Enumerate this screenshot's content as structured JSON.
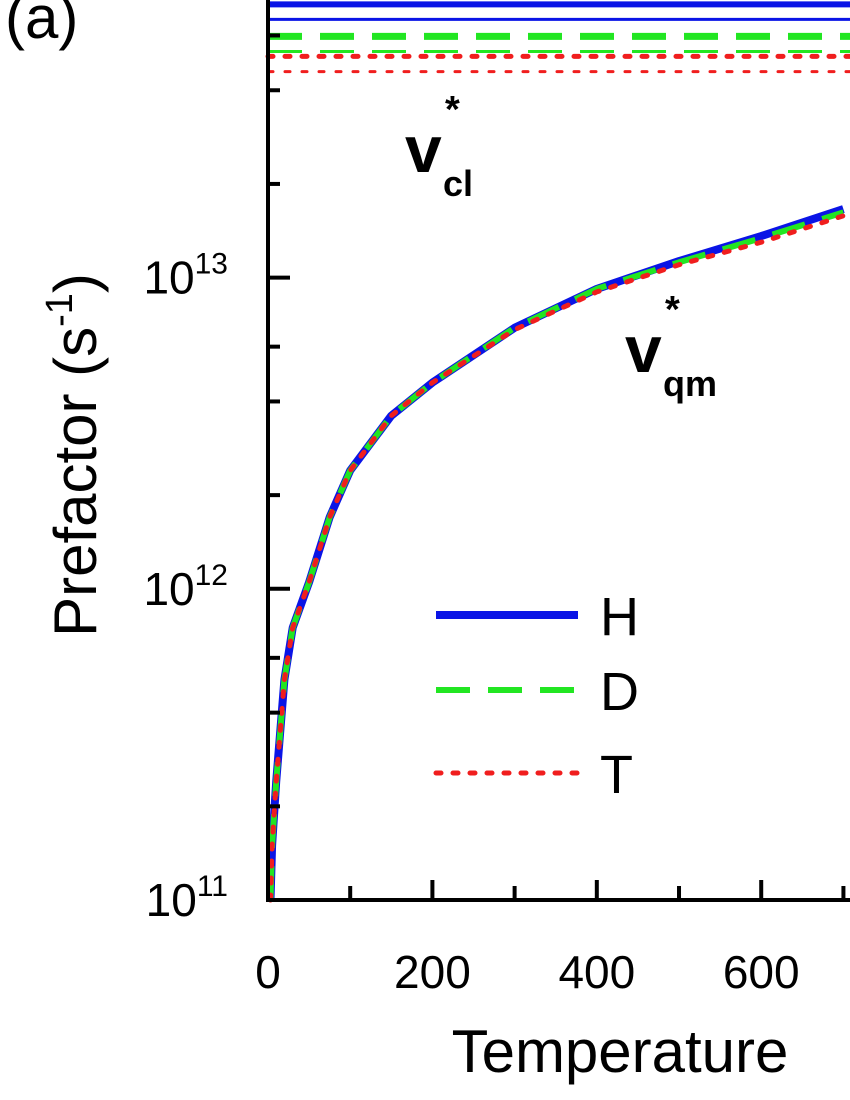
{
  "chart_data": {
    "type": "line",
    "panel_label": "(a)",
    "x_label": "Temperature",
    "y_label": {
      "text": "Prefactor (s",
      "sup": "-1",
      "end": ")"
    },
    "log_y": true,
    "xlim": [
      0,
      708
    ],
    "xticks": [
      0,
      200,
      400,
      600
    ],
    "xminor": [
      100,
      300,
      500,
      700
    ],
    "ylim": [
      100000000000.0,
      78000000000000.0
    ],
    "yticks": [
      {
        "value": 100000000000.0,
        "label": "10",
        "exponent": "11"
      },
      {
        "value": 1000000000000.0,
        "label": "10",
        "exponent": "12"
      },
      {
        "value": 10000000000000.0,
        "label": "10",
        "exponent": "13"
      }
    ],
    "yminor": [
      200000000000.0,
      400000000000.0,
      600000000000.0,
      2000000000000.0,
      4000000000000.0,
      6000000000000.0,
      20000000000000.0,
      40000000000000.0,
      60000000000000.0
    ],
    "x": [
      3,
      5,
      10,
      20,
      30,
      50,
      75,
      100,
      150,
      200,
      300,
      400,
      500,
      600,
      700
    ],
    "series": [
      {
        "name": "H",
        "color": "#0a14e6",
        "dash": "solid",
        "values": [
          100000000000.0,
          150000000000.0,
          240000000000.0,
          510000000000.0,
          750000000000.0,
          1050000000000.0,
          1700000000000.0,
          2400000000000.0,
          3600000000000.0,
          4600000000000.0,
          6900000000000.0,
          9200000000000.0,
          11300000000000.0,
          13600000000000.0,
          16600000000000.0
        ]
      },
      {
        "name": "D",
        "color": "#22e622",
        "dash": "dashed",
        "values": [
          100000000000.0,
          150000000000.0,
          240000000000.0,
          510000000000.0,
          750000000000.0,
          1050000000000.0,
          1700000000000.0,
          2400000000000.0,
          3600000000000.0,
          4600000000000.0,
          6900000000000.0,
          9200000000000.0,
          11200000000000.0,
          13400000000000.0,
          16200000000000.0
        ]
      },
      {
        "name": "T",
        "color": "#f01e1e",
        "dash": "dotted",
        "values": [
          100000000000.0,
          150000000000.0,
          240000000000.0,
          510000000000.0,
          750000000000.0,
          1050000000000.0,
          1700000000000.0,
          2400000000000.0,
          3600000000000.0,
          4600000000000.0,
          6800000000000.0,
          9000000000000.0,
          11000000000000.0,
          13000000000000.0,
          15800000000000.0
        ]
      }
    ],
    "reference_lines": [
      {
        "color": "#0a14e6",
        "dash": "solid",
        "width": 6,
        "value": 75500000000000.0
      },
      {
        "color": "#0a14e6",
        "dash": "solid",
        "width": 3,
        "value": 67600000000000.0
      },
      {
        "color": "#22e622",
        "dash": "dashed",
        "width": 7,
        "value": 59600000000000.0
      },
      {
        "color": "#22e622",
        "dash": "dashed",
        "width": 3,
        "value": 53300000000000.0
      },
      {
        "color": "#f01e1e",
        "dash": "dotted",
        "width": 5,
        "value": 51400000000000.0
      },
      {
        "color": "#f01e1e",
        "dash": "dotted",
        "width": 3,
        "value": 45900000000000.0
      }
    ],
    "annotations": [
      {
        "text": "v",
        "sup": "*",
        "sub": "cl"
      },
      {
        "text": "v",
        "sup": "*",
        "sub": "qm"
      }
    ]
  }
}
